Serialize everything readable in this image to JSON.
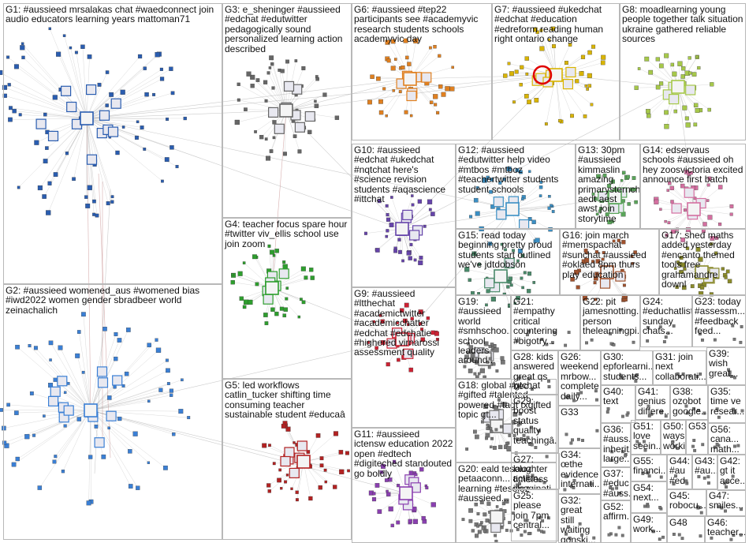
{
  "groups": [
    {
      "id": "G1",
      "label": "G1: #aussieed mrsalakas chat #waedconnect join audio educators learning years mattoman71"
    },
    {
      "id": "G2",
      "label": "G2: #aussieed womened_aus #womened bias #iwd2022 women gender sbradbeer world zeinachalich"
    },
    {
      "id": "G3",
      "label": "G3: e_sheninger #aussieed #edchat #edutwitter pedagogically sound personalized learning action described"
    },
    {
      "id": "G4",
      "label": "G4: teacher focus spare hour #twitter viv_ellis school use join zoom"
    },
    {
      "id": "G5",
      "label": "G5: led workflows catlin_tucker shifting time consuming teacher sustainable student #educaâ"
    },
    {
      "id": "G6",
      "label": "G6: #aussieed #tep22 participants see #academyvic research students schools academyvic day"
    },
    {
      "id": "G7",
      "label": "G7: #aussieed #ukedchat #edchat #education #edreform reading human right ontario change"
    },
    {
      "id": "G8",
      "label": "G8: moadlearning young people together talk situation ukraine gathered reliable sources"
    },
    {
      "id": "G9",
      "label": "G9: #aussieed #ltthechat #academictwitter #academicchatter #edchat #edchatie #highered virnarossi assessment quality"
    },
    {
      "id": "G10",
      "label": "G10: #aussieed #edchat #ukedchat #nqtchat here's #science revision students #aqascience #ittchat"
    },
    {
      "id": "G11",
      "label": "G11: #aussieed ictensw education 2022 open #edtech #digiteched standouted go boldly"
    },
    {
      "id": "G12",
      "label": "G12: #aussieed #edutwitter help video #mtbos #mtboz #teachertwitter students student schools"
    },
    {
      "id": "G13",
      "label": "G13: 30pm #aussieed kimmaslin amazing primarysternchat aedt aest awst join storytime"
    },
    {
      "id": "G14",
      "label": "G14: edservaus schools #aussieed oh hey zoosvictoria excited announce first batch"
    },
    {
      "id": "G15",
      "label": "G15: read today beginning pretty proud students start outlined we've jdtdobson"
    },
    {
      "id": "G16",
      "label": "G16: join march #memspachat #sunchat #aussieed #oklaed 8pm thurs play education"
    },
    {
      "id": "G17",
      "label": "G17: shed maths added yesterday #encanto themed tools free grahamandre downl"
    },
    {
      "id": "G18",
      "label": "G18: global #gtchat #gifted #talented powered #tagt txgifted topic gt..."
    },
    {
      "id": "G19",
      "label": "G19: #aussieed world #smhschoo... school leaders around..."
    },
    {
      "id": "G20",
      "label": "G20: eald tesoloz petaaconn... action learning #tesoloz #aussieed..."
    },
    {
      "id": "G21",
      "label": "G21: #empathy critical countering #bigotry..."
    },
    {
      "id": "G22",
      "label": "G22: pit jamesnotting... person thelearningpi..."
    },
    {
      "id": "G23",
      "label": "G23: today #assessm... #feedback feed..."
    },
    {
      "id": "G24",
      "label": "G24: #educhatlist sunday chats..."
    },
    {
      "id": "G25",
      "label": "G25: please join 7pm central..."
    },
    {
      "id": "G26",
      "label": "G26: weekend mrbow... complete daily..."
    },
    {
      "id": "G27",
      "label": "G27: laughter timeless imaginati..."
    },
    {
      "id": "G28",
      "label": "G28: kids answered great qs bec..."
    },
    {
      "id": "G29",
      "label": "G29: boost status quality teachingâ..."
    },
    {
      "id": "G30",
      "label": "G30: epforlearni... students..."
    },
    {
      "id": "G31",
      "label": "G31: join next collaborati..."
    },
    {
      "id": "G32",
      "label": "G32: great still waiting gonski..."
    },
    {
      "id": "G33",
      "label": "G33"
    },
    {
      "id": "G34",
      "label": "G34: œthe evidence internati..."
    },
    {
      "id": "G35",
      "label": "G35: time ve resear..."
    },
    {
      "id": "G36",
      "label": "G36: #auss... inherit... large..."
    },
    {
      "id": "G37",
      "label": "G37: #educ #auss..."
    },
    {
      "id": "G38",
      "label": "G38: ozobot google..."
    },
    {
      "id": "G39",
      "label": "G39: wish great..."
    },
    {
      "id": "G40",
      "label": "G40: text"
    },
    {
      "id": "G41",
      "label": "G41: genius differe..."
    },
    {
      "id": "G42",
      "label": "G42: gt it acce..."
    },
    {
      "id": "G43",
      "label": "G43: #au..."
    },
    {
      "id": "G44",
      "label": "G44: #au #ed"
    },
    {
      "id": "G45",
      "label": "G45: robocu..."
    },
    {
      "id": "G46",
      "label": "G46: teacher..."
    },
    {
      "id": "G47",
      "label": "G47: smiles..."
    },
    {
      "id": "G48",
      "label": "G48"
    },
    {
      "id": "G49",
      "label": "G49: work..."
    },
    {
      "id": "G50",
      "label": "G50: ways worki..."
    },
    {
      "id": "G51",
      "label": "G51: love seein..."
    },
    {
      "id": "G52",
      "label": "G52: affirm..."
    },
    {
      "id": "G53",
      "label": "G53"
    },
    {
      "id": "G54",
      "label": "G54: next..."
    },
    {
      "id": "G55",
      "label": "G55: financi..."
    },
    {
      "id": "G56",
      "label": "G56: cana... math..."
    }
  ],
  "colors": {
    "box_border": "#b8b8b8",
    "edge": "#9a9a9a",
    "G1": "#2a5db0",
    "G2": "#3a7fd5",
    "G3": "#666666",
    "G4": "#2e9e2e",
    "G5": "#b22222",
    "G6": "#e08020",
    "G7": "#d9b400",
    "G8": "#a6c84a",
    "G9": "#cc2233",
    "G10": "#6644aa",
    "G11": "#8a3fb0",
    "G12": "#3b8fc4",
    "G13": "#5aa55a",
    "G14": "#d46fa0",
    "G15": "#4a8a6a",
    "G16": "#a0522d",
    "G17": "#8a8a2a",
    "small": "#777777"
  }
}
